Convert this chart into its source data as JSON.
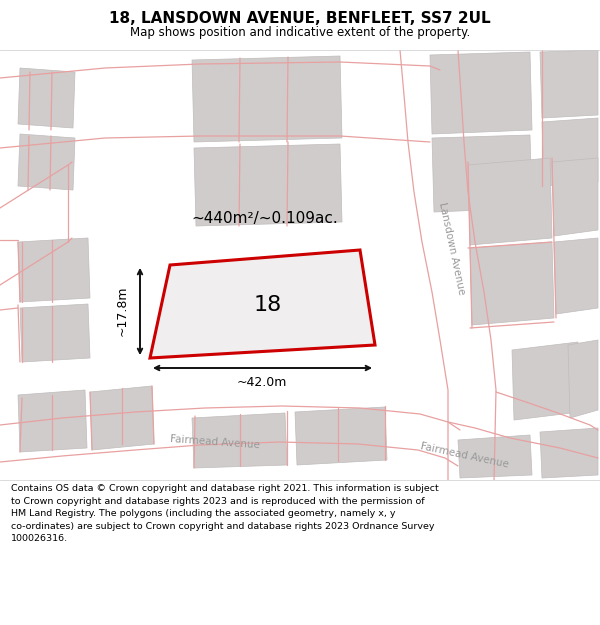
{
  "title": "18, LANSDOWN AVENUE, BENFLEET, SS7 2UL",
  "subtitle": "Map shows position and indicative extent of the property.",
  "footer_line1": "Contains OS data © Crown copyright and database right 2021. This information is subject",
  "footer_line2": "to Crown copyright and database rights 2023 and is reproduced with the permission of",
  "footer_line3": "HM Land Registry. The polygons (including the associated geometry, namely x, y",
  "footer_line4": "co-ordinates) are subject to Crown copyright and database rights 2023 Ordnance Survey",
  "footer_line5": "100026316.",
  "map_bg": "#f0eeee",
  "plot_color": "#cc0000",
  "building_fill": "#d0cccc",
  "building_edge": "#c0bcbc",
  "pink": "#e8a0a0",
  "dim_color": "#111111",
  "area_label": "~440m²/~0.109ac.",
  "width_label": "~42.0m",
  "height_label": "~17.8m",
  "label_18": "18",
  "street_lansdown": "Lansdown Avenue",
  "street_fairmead1": "Fairmead Avenue",
  "street_fairmead2": "Fairmead Avenue",
  "fig_width": 6.0,
  "fig_height": 6.25,
  "dpi": 100
}
